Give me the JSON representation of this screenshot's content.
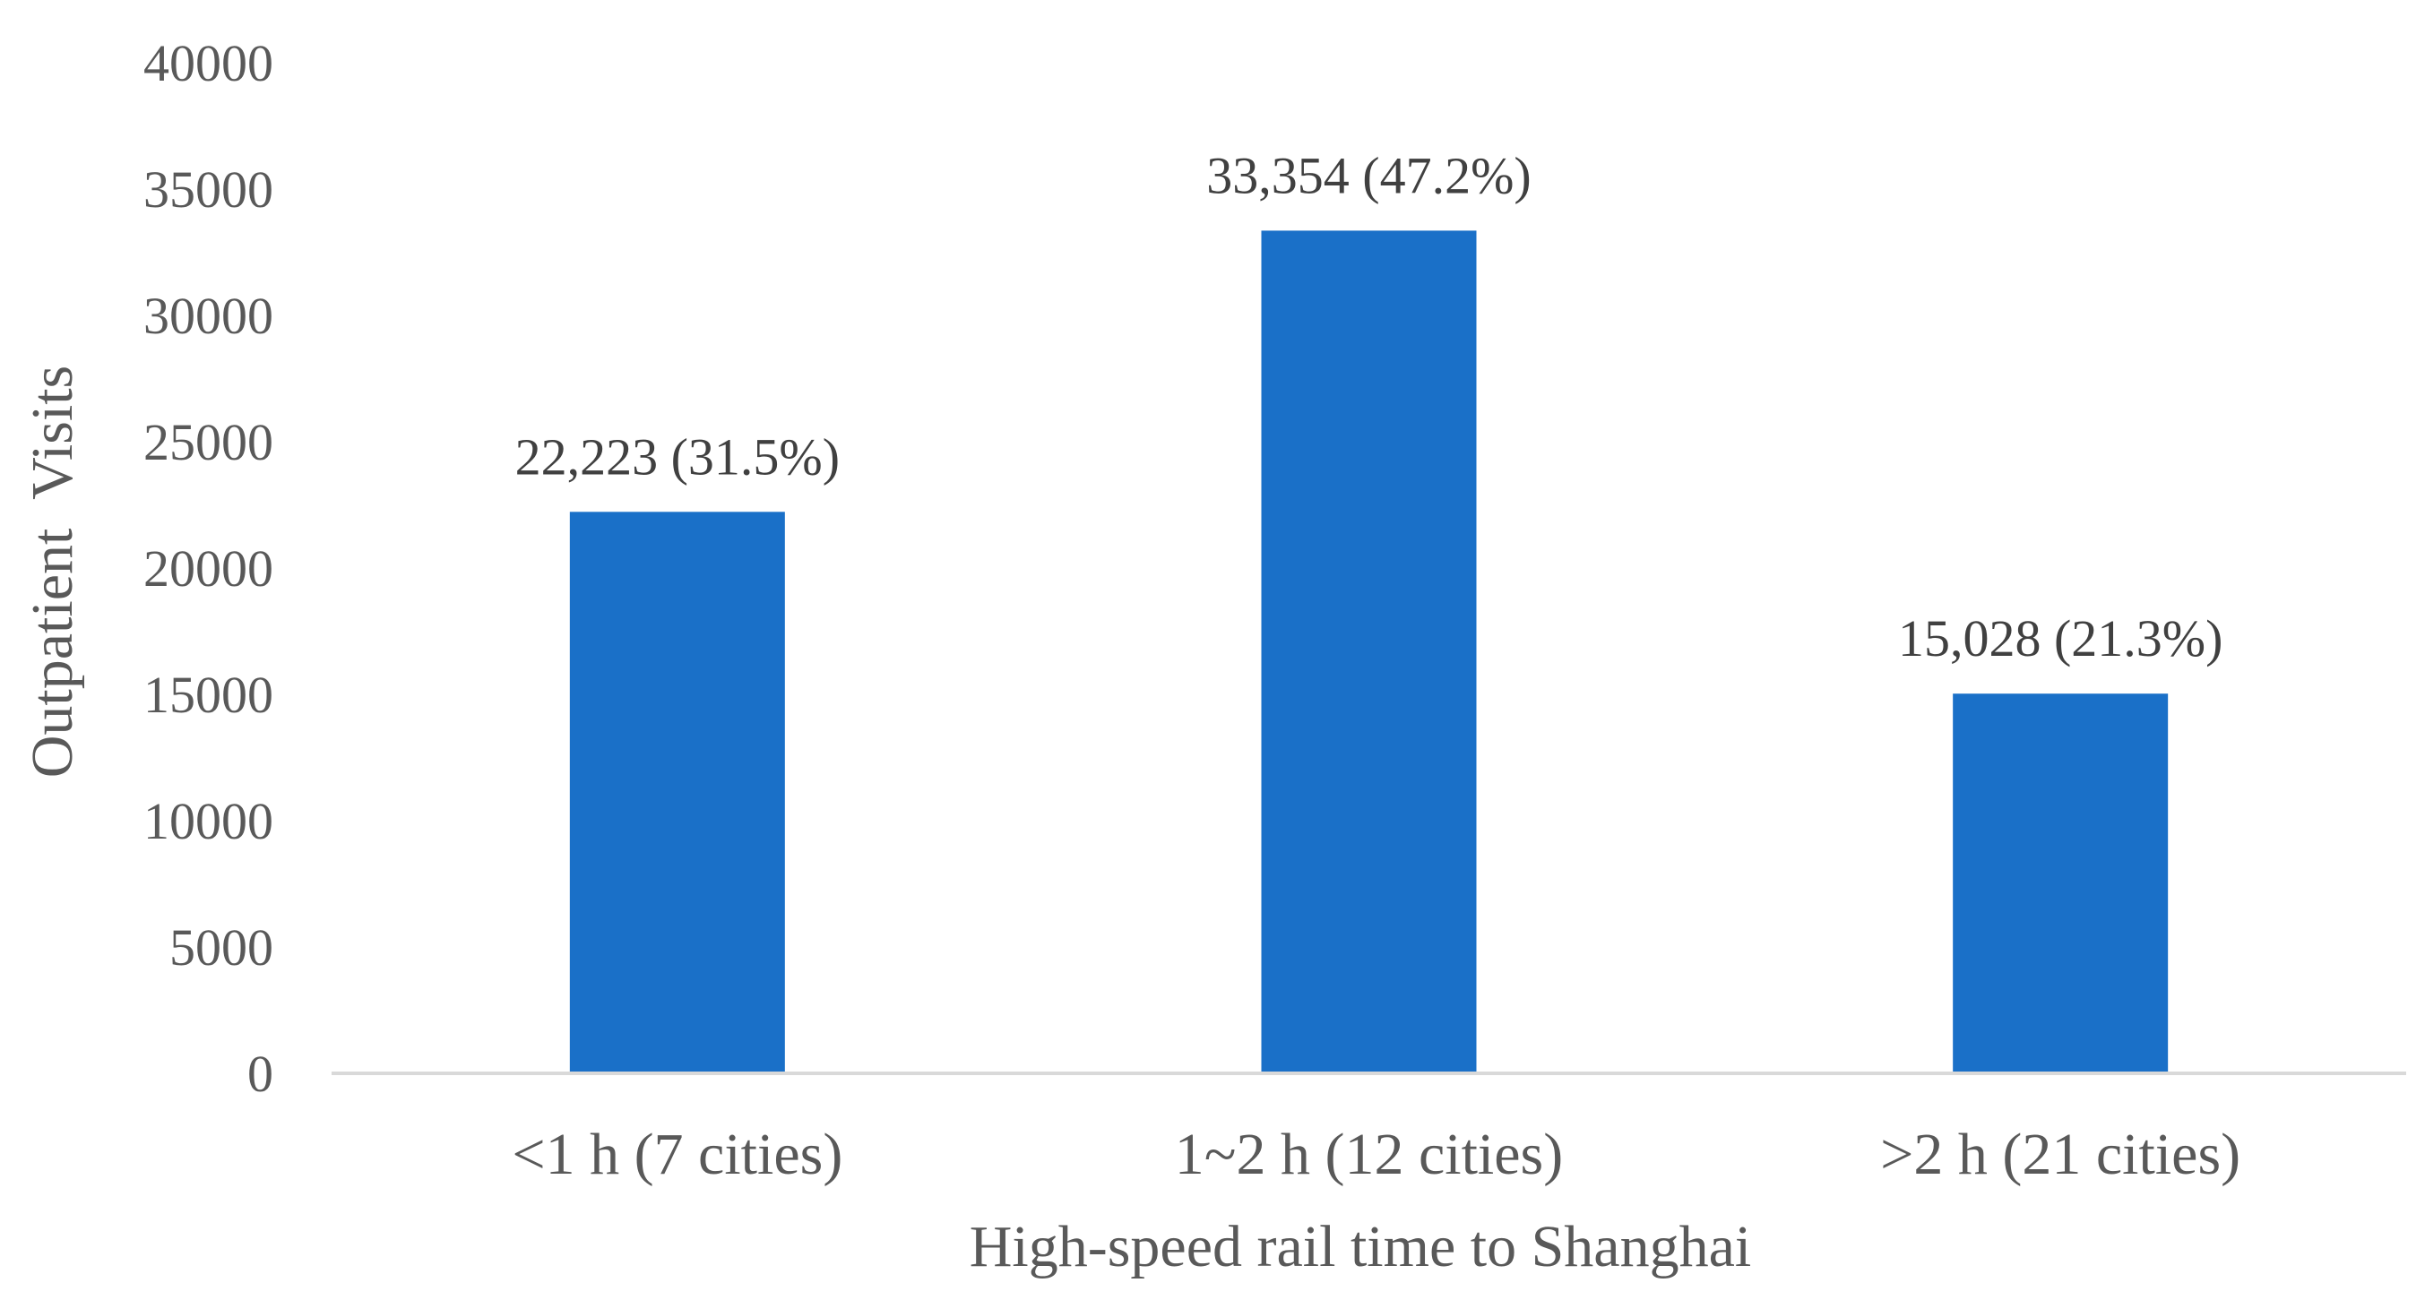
{
  "chart_data": {
    "type": "bar",
    "categories": [
      "<1 h (7 cities)",
      "1~2 h (12 cities)",
      ">2 h (21 cities)"
    ],
    "values": [
      22223,
      33354,
      15028
    ],
    "data_labels": [
      "22,223 (31.5%)",
      "33,354 (47.2%)",
      "15,028 (21.3%)"
    ],
    "title": "",
    "xlabel": "High-speed rail time to Shanghai",
    "ylabel": "Outpatient  Visits",
    "ylim": [
      0,
      40000
    ],
    "yticks": [
      0,
      5000,
      10000,
      15000,
      20000,
      25000,
      30000,
      35000,
      40000
    ],
    "ytick_labels": [
      "0",
      "5000",
      "10000",
      "15000",
      "20000",
      "25000",
      "30000",
      "35000",
      "40000"
    ],
    "grid": false,
    "legend": "none",
    "bar_color": "#1a70c8",
    "axis_color": "#d9d9d9"
  }
}
